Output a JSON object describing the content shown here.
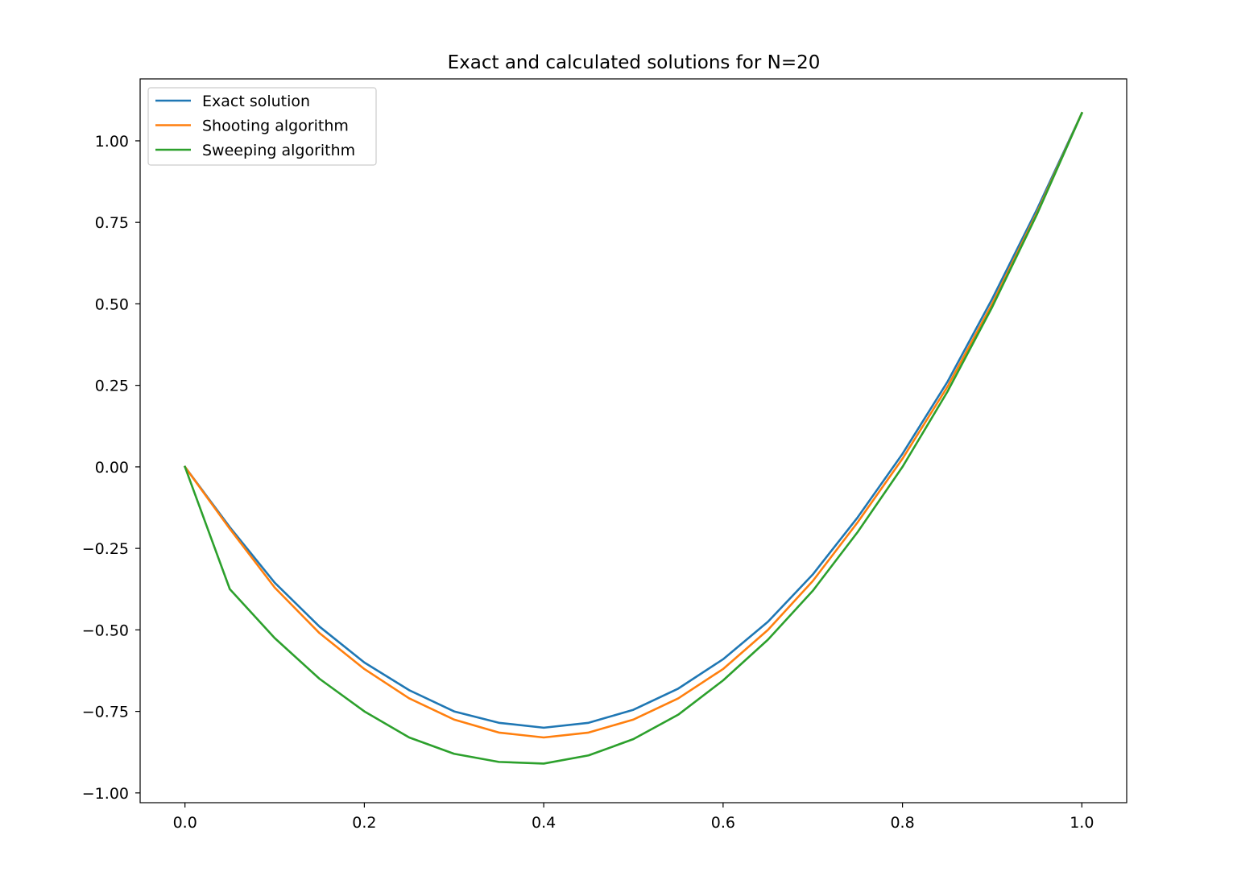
{
  "chart_data": {
    "type": "line",
    "title": "Exact and calculated solutions for N=20",
    "xlabel": "",
    "ylabel": "",
    "xlim": [
      -0.05,
      1.05
    ],
    "ylim": [
      -1.03,
      1.19
    ],
    "grid": false,
    "legend_position": "top-left",
    "x_ticks": [
      0.0,
      0.2,
      0.4,
      0.6,
      0.8,
      1.0
    ],
    "x_tick_labels": [
      "0.0",
      "0.2",
      "0.4",
      "0.6",
      "0.8",
      "1.0"
    ],
    "y_ticks": [
      -1.0,
      -0.75,
      -0.5,
      -0.25,
      0.0,
      0.25,
      0.5,
      0.75,
      1.0
    ],
    "y_tick_labels": [
      "−1.00",
      "−0.75",
      "−0.50",
      "−0.25",
      "0.00",
      "0.25",
      "0.50",
      "0.75",
      "1.00"
    ],
    "x": [
      0.0,
      0.05,
      0.1,
      0.15,
      0.2,
      0.25,
      0.3,
      0.35,
      0.4,
      0.45,
      0.5,
      0.55,
      0.6,
      0.65,
      0.7,
      0.75,
      0.8,
      0.85,
      0.9,
      0.95,
      1.0
    ],
    "series": [
      {
        "name": "Exact solution",
        "color": "#1f77b4",
        "values": [
          0.0,
          -0.185,
          -0.355,
          -0.49,
          -0.6,
          -0.685,
          -0.75,
          -0.785,
          -0.8,
          -0.785,
          -0.745,
          -0.68,
          -0.59,
          -0.475,
          -0.33,
          -0.155,
          0.04,
          0.26,
          0.515,
          0.79,
          1.085
        ]
      },
      {
        "name": "Shooting algorithm",
        "color": "#ff7f0e",
        "values": [
          0.0,
          -0.19,
          -0.37,
          -0.51,
          -0.62,
          -0.71,
          -0.775,
          -0.815,
          -0.83,
          -0.815,
          -0.775,
          -0.71,
          -0.62,
          -0.5,
          -0.35,
          -0.17,
          0.025,
          0.245,
          0.5,
          0.78,
          1.085
        ]
      },
      {
        "name": "Sweeping algorithm",
        "color": "#2ca02c",
        "values": [
          0.0,
          -0.375,
          -0.525,
          -0.65,
          -0.75,
          -0.83,
          -0.88,
          -0.905,
          -0.91,
          -0.885,
          -0.835,
          -0.76,
          -0.655,
          -0.53,
          -0.38,
          -0.2,
          0.0,
          0.23,
          0.49,
          0.775,
          1.085
        ]
      }
    ]
  }
}
